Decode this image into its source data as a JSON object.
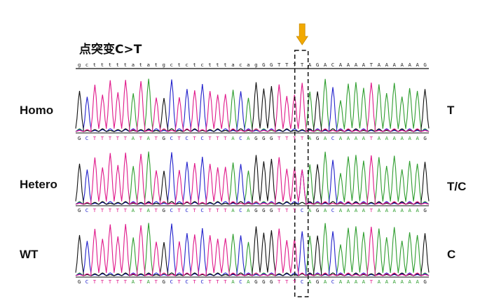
{
  "title": "点突变C>T",
  "reference_sequence": "gctttttatatgctctctttacagGGTTTTAGACAAAATAAAAAAG",
  "rows": [
    {
      "label": "Homo",
      "genotype": "T",
      "called_sequence": "GCTTTTTATATGCTCTCTTTACAGGGTTTTAGACAAAATAAAAAAG",
      "mutation_site": "T"
    },
    {
      "label": "Hetero",
      "genotype": "T/C",
      "called_sequence": "GCTTTTTATATGCTCTCTTTACAGGGTTTCAGACAAAATAAAAAAG",
      "mutation_site": "T/C"
    },
    {
      "label": "WT",
      "genotype": "C",
      "called_sequence": "GCTTTTTATATGCTCTCTTTACAGGGTTTCAGACAAAATAAAAAAG",
      "mutation_site": "C"
    }
  ],
  "base_colors": {
    "A": "#2f9e2f",
    "C": "#2222cc",
    "G": "#111111",
    "T": "#e0188a"
  },
  "marker_color": "#f2a900"
}
